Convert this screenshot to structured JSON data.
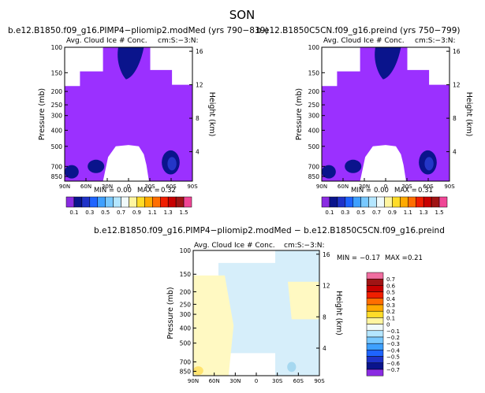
{
  "figure_title": "SON",
  "charts": [
    {
      "id": "p1",
      "header": "b.e12.B1850.f09_g16.PIMP4−pliomip2.modMed (yrs 790−839)",
      "subtitle": "Avg. Cloud Ice # Conc.",
      "units": "cm:S:−3:N:",
      "stats": {
        "min_label": "MIN =",
        "min_value": "0.00",
        "max_label": "MAX =",
        "max_value": "0.32"
      }
    },
    {
      "id": "p2",
      "header": "b.e12.B1850C5CN.f09_g16.preind (yrs 750−799)",
      "subtitle": "Avg. Cloud Ice # Conc.",
      "units": "cm:S:−3:N:",
      "stats": {
        "min_label": "MIN =",
        "min_value": "0.00",
        "max_label": "MAX =",
        "max_value": "0.31"
      }
    },
    {
      "id": "p3",
      "header": "b.e12.B1850.f09_g16.PIMP4−pliomip2.modMed − b.e12.B1850C5CN.f09_g16.preind",
      "subtitle": "Avg. Cloud Ice # Conc.",
      "units": "cm:S:−3:N:",
      "stats": {
        "min_label": "MIN =",
        "min_value": "−0.17",
        "max_label": "MAX =",
        "max_value": "0.21"
      }
    }
  ],
  "colors": {
    "abs_fill": "#9b30ff",
    "abs_dark": "#0a148c",
    "abs_mid": "#2436c8",
    "abs_light": "#50a0ff",
    "diff_pos_weak": "#fff9c2",
    "diff_neg_weak": "#d6eefa",
    "diff_neg": "#a6d8f0",
    "diff_pos": "#ffe36e"
  },
  "chart_data": {
    "type": "heatmap",
    "ylabel": "Pressure (mb)",
    "ylabel_right": "Height (km)",
    "x_ticks": [
      "90N",
      "60N",
      "30N",
      "0",
      "30S",
      "60S",
      "90S"
    ],
    "y_ticks": [
      "100",
      "150",
      "200",
      "250",
      "300",
      "400",
      "500",
      "700",
      "850"
    ],
    "y_ticks_right": [
      "16",
      "12",
      "8",
      "4"
    ],
    "abs_colorbar": {
      "labels": [
        "0.1",
        "0.3",
        "0.5",
        "0.7",
        "0.9",
        "1.1",
        "1.3",
        "1.5"
      ],
      "colors": [
        "#8a2be2",
        "#0a148c",
        "#1f32c8",
        "#1e64ff",
        "#3ea0ff",
        "#78c8ff",
        "#b4e6ff",
        "#f0fafa",
        "#fff5a0",
        "#ffdc28",
        "#ffaa00",
        "#ff6e00",
        "#f01e00",
        "#c80000",
        "#a01414",
        "#f04696"
      ]
    },
    "diff_colorbar": {
      "labels": [
        "0.7",
        "0.6",
        "0.5",
        "0.4",
        "0.3",
        "0.2",
        "0.1",
        "0",
        "−0.1",
        "−0.2",
        "−0.3",
        "−0.4",
        "−0.5",
        "−0.6",
        "−0.7"
      ],
      "colors": [
        "#f06ea0",
        "#a01414",
        "#c80000",
        "#f01e00",
        "#ff6e00",
        "#ffaa00",
        "#ffdc28",
        "#fff5a0",
        "#f0fafa",
        "#b4e6ff",
        "#78c8ff",
        "#3ea0ff",
        "#1e64ff",
        "#1f32c8",
        "#0a148c",
        "#8a2be2"
      ]
    },
    "panels": [
      {
        "id": "p1",
        "summary_min": 0.0,
        "summary_max": 0.32
      },
      {
        "id": "p2",
        "summary_min": 0.0,
        "summary_max": 0.31
      },
      {
        "id": "p3",
        "summary_min": -0.17,
        "summary_max": 0.21
      }
    ]
  }
}
